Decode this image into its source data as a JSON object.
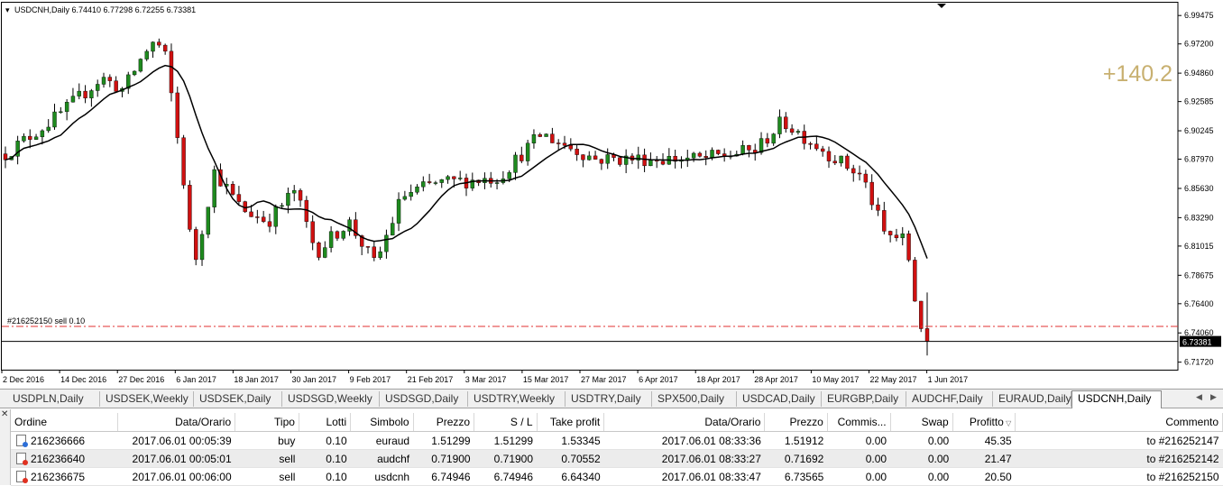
{
  "chart": {
    "info": "USDCNH,Daily  6.74410 6.77298 6.72255 6.73381",
    "profit_overlay": "+140.2",
    "order_line_label": "#216252150 sell 0.10",
    "current_price": "6.73381",
    "price_axis": [
      "6.99475",
      "6.97200",
      "6.94860",
      "6.92585",
      "6.90245",
      "6.87970",
      "6.85630",
      "6.83290",
      "6.81015",
      "6.78675",
      "6.76400",
      "6.74060",
      "6.71720"
    ],
    "date_axis": [
      "2 Dec 2016",
      "14 Dec 2016",
      "27 Dec 2016",
      "6 Jan 2017",
      "18 Jan 2017",
      "30 Jan 2017",
      "9 Feb 2017",
      "21 Feb 2017",
      "3 Mar 2017",
      "15 Mar 2017",
      "27 Mar 2017",
      "6 Apr 2017",
      "18 Apr 2017",
      "28 Apr 2017",
      "10 May 2017",
      "22 May 2017",
      "1 Jun 2017"
    ],
    "colors": {
      "bull": "#1e8a1e",
      "bear": "#d01010",
      "ma": "#000000",
      "profit": "#c8b070",
      "order_line": "#e03030"
    }
  },
  "tabs": [
    "USDPLN,Daily",
    "USDSEK,Weekly",
    "USDSEK,Daily",
    "USDSGD,Weekly",
    "USDSGD,Daily",
    "USDTRY,Weekly",
    "USDTRY,Daily",
    "SPX500,Daily",
    "USDCAD,Daily",
    "EURGBP,Daily",
    "AUDCHF,Daily",
    "EURAUD,Daily",
    "USDCNH,Daily"
  ],
  "active_tab": "USDCNH,Daily",
  "orders": {
    "columns": [
      "Ordine",
      "Data/Orario",
      "Tipo",
      "Lotti",
      "Simbolo",
      "Prezzo",
      "S / L",
      "Take profit",
      "Data/Orario",
      "Prezzo",
      "Commis...",
      "Swap",
      "Profitto",
      "Commento"
    ],
    "rows": [
      {
        "ordine": "216236666",
        "open_time": "2017.06.01 00:05:39",
        "tipo": "buy",
        "lotti": "0.10",
        "simbolo": "euraud",
        "prezzo": "1.51299",
        "sl": "1.51299",
        "tp": "1.53345",
        "close_time": "2017.06.01 08:33:36",
        "close_price": "1.51912",
        "commission": "0.00",
        "swap": "0.00",
        "profit": "45.35",
        "comment": "to #216252147"
      },
      {
        "ordine": "216236640",
        "open_time": "2017.06.01 00:05:01",
        "tipo": "sell",
        "lotti": "0.10",
        "simbolo": "audchf",
        "prezzo": "0.71900",
        "sl": "0.71900",
        "tp": "0.70552",
        "close_time": "2017.06.01 08:33:27",
        "close_price": "0.71692",
        "commission": "0.00",
        "swap": "0.00",
        "profit": "21.47",
        "comment": "to #216252142"
      },
      {
        "ordine": "216236675",
        "open_time": "2017.06.01 00:06:00",
        "tipo": "sell",
        "lotti": "0.10",
        "simbolo": "usdcnh",
        "prezzo": "6.74946",
        "sl": "6.74946",
        "tp": "6.64340",
        "close_time": "2017.06.01 08:33:47",
        "close_price": "6.73565",
        "commission": "0.00",
        "swap": "0.00",
        "profit": "20.50",
        "comment": "to #216252150"
      }
    ]
  }
}
